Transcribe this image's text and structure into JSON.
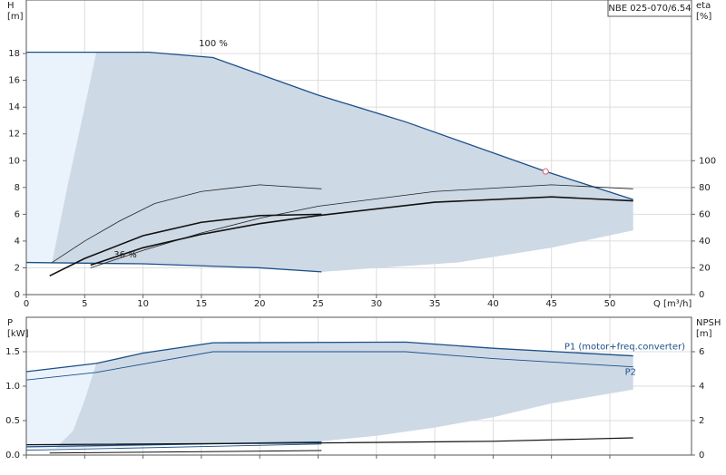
{
  "chart_data": [
    {
      "type": "line",
      "title": "NBE 025-070/6.54",
      "xlabel": "Q [m³/h]",
      "ylabel": [
        "H",
        "[m]"
      ],
      "y2label": [
        "eta",
        "[%]"
      ],
      "annotations": [
        "100 %",
        "36 %"
      ],
      "xlim": [
        0,
        57
      ],
      "xticks": [
        0,
        5,
        10,
        15,
        20,
        25,
        30,
        35,
        40,
        45,
        50
      ],
      "ylim": [
        0,
        22
      ],
      "yticks": [
        0,
        2,
        4,
        6,
        8,
        10,
        12,
        14,
        16,
        18
      ],
      "y2lim": [
        0,
        220
      ],
      "y2ticks": [
        0,
        20,
        40,
        60,
        80,
        100
      ],
      "grid": true,
      "series": [
        {
          "kind": "area",
          "color": "#eaf3fc",
          "x": [
            0,
            6,
            5,
            3.5,
            2.2,
            0
          ],
          "values": [
            18.1,
            18.1,
            14,
            8,
            2.4,
            2.4
          ]
        },
        {
          "kind": "area",
          "color": "#cdd9e5",
          "x": [
            6,
            10.5,
            16,
            25,
            32.5,
            44.5,
            52,
            52,
            45,
            37,
            25.3,
            20,
            10,
            2.2,
            3.5,
            5
          ],
          "values": [
            18.1,
            18.1,
            17.7,
            14.9,
            12.9,
            9.2,
            7.1,
            4.8,
            3.5,
            2.4,
            1.7,
            2.0,
            2.3,
            2.4,
            8,
            14
          ]
        },
        {
          "kind": "line",
          "color": "#1c4f8a",
          "width": 1.3,
          "x": [
            0,
            6,
            10.5,
            16,
            25,
            32.5,
            44.5,
            52
          ],
          "values": [
            18.1,
            18.1,
            18.1,
            17.7,
            14.9,
            12.9,
            9.2,
            7.1
          ]
        },
        {
          "kind": "line",
          "color": "#1c4f8a",
          "width": 1.3,
          "x": [
            0,
            10,
            20,
            25.3
          ],
          "values": [
            2.4,
            2.3,
            2.0,
            1.7
          ]
        },
        {
          "kind": "line",
          "color": "#222",
          "width": 0.8,
          "axis": "y2",
          "x": [
            2.2,
            5,
            8,
            11,
            15,
            20,
            25.3
          ],
          "values": [
            24,
            40,
            55,
            68,
            77,
            82,
            79
          ]
        },
        {
          "kind": "line",
          "color": "#222",
          "width": 0.8,
          "axis": "y2",
          "x": [
            5.5,
            10,
            15,
            20,
            25,
            35,
            45,
            52
          ],
          "values": [
            20,
            33,
            46,
            57,
            66,
            77,
            82,
            79
          ]
        },
        {
          "kind": "line",
          "color": "#111",
          "width": 1.6,
          "axis": "y2",
          "x": [
            2,
            5,
            10,
            15,
            20,
            25.3
          ],
          "values": [
            14,
            27,
            44,
            54,
            59,
            60
          ]
        },
        {
          "kind": "line",
          "color": "#111",
          "width": 1.6,
          "axis": "y2",
          "x": [
            5.5,
            10,
            15,
            20,
            25,
            35,
            45,
            52
          ],
          "values": [
            22,
            35,
            45,
            53,
            59,
            69,
            73,
            70
          ]
        },
        {
          "kind": "marker",
          "color": "#e06070",
          "x": [
            44.5
          ],
          "values": [
            9.2
          ]
        }
      ]
    },
    {
      "type": "line",
      "ylabel": [
        "P",
        "[kW]"
      ],
      "y2label": [
        "NPSH",
        "[m]"
      ],
      "xlim": [
        0,
        57
      ],
      "xticks": [
        0,
        5,
        10,
        15,
        20,
        25,
        30,
        35,
        40,
        45,
        50
      ],
      "ylim": [
        0,
        2
      ],
      "yticks": [
        {
          "value": 0,
          "label": "0.0"
        },
        0.5,
        {
          "value": 1,
          "label": "1.0"
        },
        1.5
      ],
      "y2lim": [
        0,
        8
      ],
      "y2ticks": [
        0,
        2,
        4,
        6
      ],
      "grid": true,
      "series": [
        {
          "kind": "area",
          "color": "#eaf3fc",
          "x": [
            0,
            6,
            5,
            4,
            2.5,
            0
          ],
          "values": [
            1.21,
            1.33,
            0.8,
            0.35,
            0.1,
            0.08
          ]
        },
        {
          "kind": "area",
          "color": "#cdd9e5",
          "x": [
            6,
            10,
            16,
            32.5,
            40,
            52,
            52,
            45,
            40,
            35,
            30,
            25.3,
            2.5,
            4,
            5
          ],
          "values": [
            1.33,
            1.48,
            1.63,
            1.64,
            1.55,
            1.44,
            0.95,
            0.75,
            0.55,
            0.4,
            0.28,
            0.2,
            0.1,
            0.35,
            0.8
          ]
        },
        {
          "kind": "line",
          "name": "P1 (motor+freq.converter)",
          "color": "#1c4f8a",
          "width": 1.3,
          "x": [
            0,
            6,
            10,
            16,
            32.5,
            40,
            52
          ],
          "values": [
            1.21,
            1.33,
            1.48,
            1.63,
            1.64,
            1.55,
            1.44
          ]
        },
        {
          "kind": "line",
          "name": "P2",
          "color": "#1c4f8a",
          "width": 0.9,
          "x": [
            0,
            6,
            16,
            32.5,
            40,
            52
          ],
          "values": [
            1.09,
            1.2,
            1.5,
            1.5,
            1.4,
            1.28
          ]
        },
        {
          "kind": "line",
          "color": "#1c4f8a",
          "width": 1.3,
          "x": [
            0,
            25.3
          ],
          "values": [
            0.12,
            0.19
          ]
        },
        {
          "kind": "line",
          "color": "#1c4f8a",
          "width": 0.9,
          "x": [
            0,
            25.3
          ],
          "values": [
            0.07,
            0.16
          ]
        },
        {
          "kind": "line",
          "color": "#111",
          "width": 1.2,
          "axis": "y2",
          "x": [
            0,
            25,
            40,
            52
          ],
          "values": [
            0.6,
            0.7,
            0.8,
            1.0
          ]
        },
        {
          "kind": "line",
          "color": "#111",
          "width": 1.0,
          "axis": "y2",
          "x": [
            2,
            25.3
          ],
          "values": [
            0.12,
            0.26
          ]
        }
      ]
    }
  ]
}
